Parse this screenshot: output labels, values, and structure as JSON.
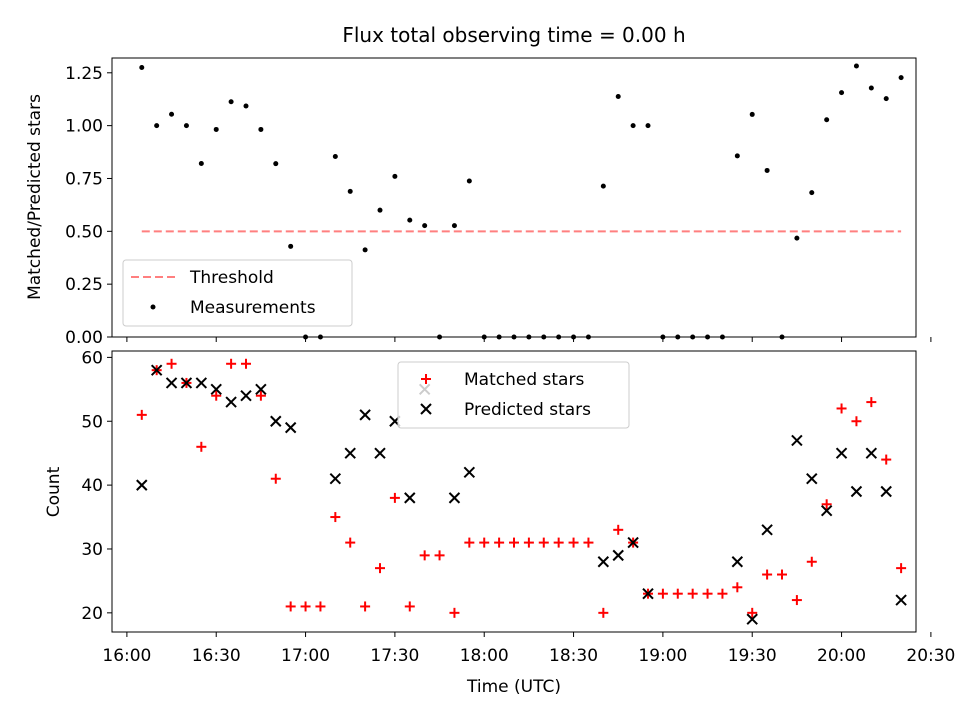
{
  "chart_data": [
    {
      "type": "scatter",
      "title": "Flux total observing time = 0.00 h",
      "xlabel": "",
      "ylabel": "Matched/Predicted stars",
      "ylim": [
        0,
        1.32
      ],
      "yticks": [
        0,
        0.25,
        0.5,
        0.75,
        1.0,
        1.25
      ],
      "ytick_labels": [
        "0.00",
        "0.25",
        "0.50",
        "0.75",
        "1.00",
        "1.25"
      ],
      "legend_position": "lower-left",
      "legend": {
        "threshold": "Threshold",
        "measurements": "Measurements"
      },
      "threshold": {
        "name": "Threshold",
        "value": 0.5,
        "x_start": "16:05",
        "x_end": "20:20",
        "color": "#ff7f7f"
      },
      "series": [
        {
          "name": "Measurements",
          "marker": "dot",
          "color": "#000000",
          "x": [
            "16:05",
            "16:10",
            "16:15",
            "16:20",
            "16:25",
            "16:30",
            "16:35",
            "16:40",
            "16:45",
            "16:50",
            "16:55",
            "17:00",
            "17:05",
            "17:10",
            "17:15",
            "17:20",
            "17:25",
            "17:30",
            "17:35",
            "17:40",
            "17:45",
            "17:50",
            "17:55",
            "18:00",
            "18:05",
            "18:10",
            "18:15",
            "18:20",
            "18:25",
            "18:30",
            "18:35",
            "18:40",
            "18:45",
            "18:50",
            "18:55",
            "19:00",
            "19:05",
            "19:10",
            "19:15",
            "19:20",
            "19:25",
            "19:30",
            "19:35",
            "19:40",
            "19:45",
            "19:50",
            "19:55",
            "20:00",
            "20:05",
            "20:10",
            "20:15",
            "20:20"
          ],
          "values": [
            1.275,
            1.0,
            1.054,
            1.0,
            0.821,
            0.982,
            1.113,
            1.093,
            0.982,
            0.82,
            0.429,
            0.0,
            0.0,
            0.854,
            0.689,
            0.412,
            0.6,
            0.76,
            0.553,
            0.527,
            0.0,
            0.527,
            0.738,
            0.0,
            0.0,
            0.0,
            0.0,
            0.0,
            0.0,
            0.0,
            0.0,
            0.714,
            1.138,
            1.0,
            1.0,
            0.0,
            0.0,
            0.0,
            0.0,
            0.0,
            0.857,
            1.053,
            0.788,
            0.0,
            0.468,
            0.683,
            1.028,
            1.156,
            1.282,
            1.178,
            1.128,
            1.227
          ]
        }
      ]
    },
    {
      "type": "scatter",
      "title": "",
      "xlabel": "Time (UTC)",
      "ylabel": "Count",
      "ylim": [
        17,
        61
      ],
      "yticks": [
        20,
        30,
        40,
        50,
        60
      ],
      "ytick_labels": [
        "20",
        "30",
        "40",
        "50",
        "60"
      ],
      "xlim": [
        "15:55",
        "20:25"
      ],
      "xticks": [
        "16:00",
        "16:30",
        "17:00",
        "17:30",
        "18:00",
        "18:30",
        "19:00",
        "19:30",
        "20:00",
        "20:30"
      ],
      "legend_position": "upper-center",
      "legend": {
        "matched": "Matched stars",
        "predicted": "Predicted stars"
      },
      "x": [
        "16:05",
        "16:10",
        "16:15",
        "16:20",
        "16:25",
        "16:30",
        "16:35",
        "16:40",
        "16:45",
        "16:50",
        "16:55",
        "17:00",
        "17:05",
        "17:10",
        "17:15",
        "17:20",
        "17:25",
        "17:30",
        "17:35",
        "17:40",
        "17:45",
        "17:50",
        "17:55",
        "18:00",
        "18:05",
        "18:10",
        "18:15",
        "18:20",
        "18:25",
        "18:30",
        "18:35",
        "18:40",
        "18:45",
        "18:50",
        "18:55",
        "19:00",
        "19:05",
        "19:10",
        "19:15",
        "19:20",
        "19:25",
        "19:30",
        "19:35",
        "19:40",
        "19:45",
        "19:50",
        "19:55",
        "20:00",
        "20:05",
        "20:10",
        "20:15",
        "20:20"
      ],
      "series": [
        {
          "name": "Matched stars",
          "marker": "plus",
          "color": "#ff0000",
          "values": [
            51,
            58,
            59,
            56,
            46,
            54,
            59,
            59,
            54,
            41,
            21,
            21,
            21,
            35,
            31,
            21,
            27,
            38,
            21,
            29,
            29,
            20,
            31,
            31,
            31,
            31,
            31,
            31,
            31,
            31,
            31,
            20,
            33,
            31,
            23,
            23,
            23,
            23,
            23,
            23,
            24,
            20,
            26,
            26,
            22,
            28,
            37,
            52,
            50,
            53,
            44,
            27
          ]
        },
        {
          "name": "Predicted stars",
          "marker": "x",
          "color": "#000000",
          "values": [
            40,
            58,
            56,
            56,
            56,
            55,
            53,
            54,
            55,
            50,
            49,
            null,
            null,
            41,
            45,
            51,
            45,
            50,
            38,
            55,
            null,
            38,
            42,
            null,
            null,
            null,
            null,
            null,
            null,
            null,
            null,
            28,
            29,
            31,
            23,
            null,
            null,
            null,
            null,
            null,
            28,
            19,
            33,
            null,
            47,
            41,
            36,
            45,
            39,
            45,
            39,
            22
          ]
        }
      ]
    }
  ]
}
